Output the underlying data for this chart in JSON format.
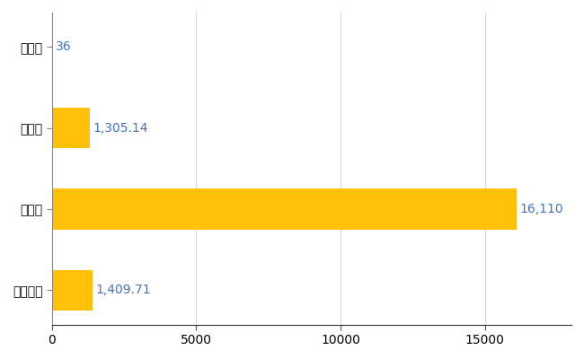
{
  "categories": [
    "五木村",
    "県平均",
    "県最大",
    "全国平均"
  ],
  "values": [
    36,
    1305.14,
    16110,
    1409.71
  ],
  "labels": [
    "36",
    "1,305.14",
    "16,110",
    "1,409.71"
  ],
  "bar_color": "#FFC107",
  "bar_edgecolor": "#FFC107",
  "xlim": [
    0,
    18000
  ],
  "xticks": [
    0,
    5000,
    10000,
    15000
  ],
  "xtick_labels": [
    "0",
    "5000",
    "10000",
    "15000"
  ],
  "grid_color": "#bbbbbb",
  "text_color": "#4472C4",
  "background_color": "#ffffff",
  "label_fontsize": 10,
  "tick_fontsize": 10,
  "bar_height": 0.5
}
